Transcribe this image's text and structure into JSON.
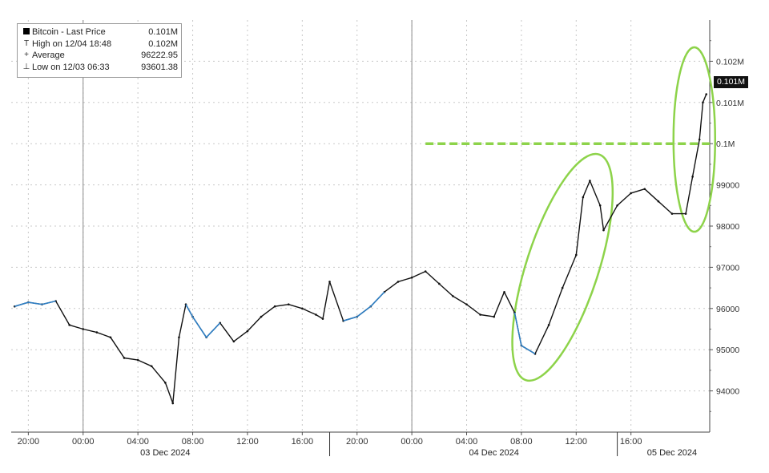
{
  "legend": {
    "items": [
      {
        "icon": "box",
        "label": "Bitcoin - Last Price",
        "value": "0.101M"
      },
      {
        "icon": "T",
        "label": "High on 12/04 18:48",
        "value": "0.102M"
      },
      {
        "icon": "+",
        "label": "Average",
        "value": "96222.95"
      },
      {
        "icon": "⊥",
        "label": "Low on 12/03 06:33",
        "value": "93601.38"
      }
    ]
  },
  "last_price_badge": "0.101M",
  "colors": {
    "price_line": "#111111",
    "highlight_segments": "#2f7fc4",
    "annotation": "#8dd34a",
    "grid": "#c8c8c8"
  },
  "chart_data": {
    "type": "line",
    "series": [
      {
        "name": "Bitcoin - Last Price",
        "points": [
          [
            "12/02 19:00",
            96050
          ],
          [
            "12/02 20:00",
            96150
          ],
          [
            "12/02 21:00",
            96100
          ],
          [
            "12/02 22:00",
            96180
          ],
          [
            "12/02 23:00",
            95600
          ],
          [
            "12/03 00:00",
            95500
          ],
          [
            "12/03 01:00",
            95420
          ],
          [
            "12/03 02:00",
            95300
          ],
          [
            "12/03 03:00",
            94800
          ],
          [
            "12/03 04:00",
            94750
          ],
          [
            "12/03 05:00",
            94600
          ],
          [
            "12/03 06:00",
            94200
          ],
          [
            "12/03 06:33",
            93700
          ],
          [
            "12/03 07:00",
            95300
          ],
          [
            "12/03 07:30",
            96100
          ],
          [
            "12/03 08:00",
            95800
          ],
          [
            "12/03 09:00",
            95300
          ],
          [
            "12/03 10:00",
            95650
          ],
          [
            "12/03 11:00",
            95200
          ],
          [
            "12/03 12:00",
            95450
          ],
          [
            "12/03 13:00",
            95800
          ],
          [
            "12/03 14:00",
            96050
          ],
          [
            "12/03 15:00",
            96100
          ],
          [
            "12/03 16:00",
            96000
          ],
          [
            "12/03 17:00",
            95850
          ],
          [
            "12/03 17:30",
            95750
          ],
          [
            "12/03 18:00",
            96650
          ],
          [
            "12/03 19:00",
            95700
          ],
          [
            "12/03 20:00",
            95800
          ],
          [
            "12/03 21:00",
            96050
          ],
          [
            "12/03 22:00",
            96400
          ],
          [
            "12/03 23:00",
            96650
          ],
          [
            "12/04 00:00",
            96750
          ],
          [
            "12/04 01:00",
            96900
          ],
          [
            "12/04 02:00",
            96600
          ],
          [
            "12/04 03:00",
            96300
          ],
          [
            "12/04 04:00",
            96100
          ],
          [
            "12/04 05:00",
            95850
          ],
          [
            "12/04 06:00",
            95800
          ],
          [
            "12/04 06:45",
            96400
          ],
          [
            "12/04 07:30",
            95900
          ],
          [
            "12/04 08:00",
            95100
          ],
          [
            "12/04 09:00",
            94900
          ],
          [
            "12/04 10:00",
            95600
          ],
          [
            "12/04 11:00",
            96500
          ],
          [
            "12/04 12:00",
            97300
          ],
          [
            "12/04 12:30",
            98700
          ],
          [
            "12/04 13:00",
            99100
          ],
          [
            "12/04 13:45",
            98500
          ],
          [
            "12/04 14:00",
            97900
          ],
          [
            "12/04 15:00",
            98500
          ],
          [
            "12/04 16:00",
            98800
          ],
          [
            "12/04 17:00",
            98900
          ],
          [
            "12/04 18:00",
            98600
          ],
          [
            "12/04 19:00",
            98300
          ],
          [
            "12/04 20:00",
            98300
          ],
          [
            "12/04 20:30",
            99200
          ],
          [
            "12/04 21:00",
            100100
          ],
          [
            "12/04 21:15",
            101000
          ],
          [
            "12/04 21:30",
            101200
          ]
        ]
      }
    ],
    "x_ticks": [
      "20:00",
      "00:00",
      "04:00",
      "08:00",
      "12:00",
      "16:00",
      "20:00",
      "00:00",
      "04:00",
      "08:00",
      "12:00",
      "16:00"
    ],
    "x_tick_times": [
      "12/02 20:00",
      "12/03 00:00",
      "12/03 04:00",
      "12/03 08:00",
      "12/03 12:00",
      "12/03 16:00",
      "12/03 20:00",
      "12/04 00:00",
      "12/04 04:00",
      "12/04 08:00",
      "12/04 12:00",
      "12/04 16:00"
    ],
    "date_labels": [
      "03 Dec 2024",
      "04 Dec 2024",
      "05 Dec 2024"
    ],
    "y_ticks": [
      "94000",
      "95000",
      "96000",
      "97000",
      "98000",
      "99000",
      "0.1M",
      "0.101M",
      "0.102M"
    ],
    "y_tick_values": [
      94000,
      95000,
      96000,
      97000,
      98000,
      99000,
      100000,
      101000,
      102000
    ],
    "ylim": [
      93000,
      103000
    ],
    "xlim": [
      "12/02 18:45",
      "12/04 21:45"
    ],
    "grid": true,
    "legend_position": "top-left",
    "annotations": [
      {
        "type": "dashed-hline",
        "value": 100000
      },
      {
        "type": "ellipse",
        "around": "12/04 08:00 to 12/04 14:00 rally"
      },
      {
        "type": "ellipse",
        "around": "12/04 20:00 to 12/04 21:30 breakout"
      }
    ]
  }
}
